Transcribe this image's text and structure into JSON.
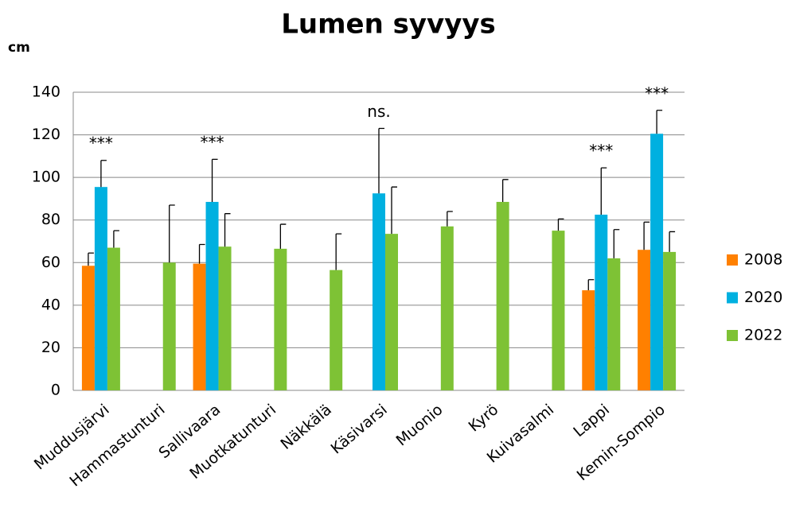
{
  "chart_data": {
    "type": "bar",
    "title": "Lumen syvyys",
    "y_label": "cm",
    "categories": [
      "Muddusjärvi",
      "Hammastunturi",
      "Sallivaara",
      "Muotkatunturi",
      "Näkkälä",
      "Käsivarsi",
      "Muonio",
      "Kyrö",
      "Kuivasalmi",
      "Lappi",
      "Kemin-Sompio"
    ],
    "series": [
      {
        "name": "2008",
        "color": "#ff8000",
        "values": [
          58.5,
          null,
          59.5,
          null,
          null,
          null,
          null,
          null,
          null,
          47,
          66
        ],
        "errors": [
          6,
          null,
          9,
          null,
          null,
          null,
          null,
          null,
          null,
          5,
          13
        ]
      },
      {
        "name": "2020",
        "color": "#00b0e0",
        "values": [
          95.5,
          null,
          88.5,
          null,
          null,
          92.5,
          null,
          null,
          null,
          82.5,
          120.5
        ],
        "errors": [
          12.5,
          null,
          20,
          null,
          null,
          30.5,
          null,
          null,
          null,
          22,
          11
        ]
      },
      {
        "name": "2022",
        "color": "#7ec235",
        "values": [
          67,
          60,
          67.5,
          66.5,
          56.5,
          73.5,
          77,
          88.5,
          75,
          62,
          65
        ],
        "errors": [
          8,
          27,
          15.5,
          11.5,
          17,
          22,
          7,
          10.5,
          5.5,
          13.5,
          9.5
        ]
      }
    ],
    "annotations": [
      "***",
      null,
      "***",
      null,
      null,
      "ns.",
      null,
      null,
      null,
      "***",
      "***"
    ],
    "ylim": [
      0,
      140
    ],
    "yticks": [
      0,
      20,
      40,
      60,
      80,
      100,
      120,
      140
    ],
    "grid": true,
    "legend": "right"
  }
}
